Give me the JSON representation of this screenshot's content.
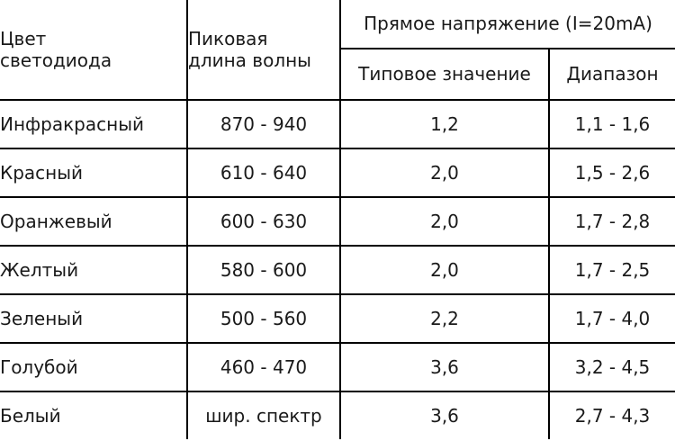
{
  "header": {
    "color_line1": "Цвет",
    "color_line2": "светодиода",
    "wave_line1": "Пиковая",
    "wave_line2": "длина волны",
    "forward_voltage": "Прямое напряжение (I=20mA)",
    "typical": "Типовое значение",
    "range": "Диапазон"
  },
  "rows": [
    {
      "color": "Инфракрасный",
      "wave": "870 - 940",
      "typical": "1,2",
      "range": "1,1 - 1,6"
    },
    {
      "color": "Красный",
      "wave": "610 - 640",
      "typical": "2,0",
      "range": "1,5 - 2,6"
    },
    {
      "color": "Оранжевый",
      "wave": "600 - 630",
      "typical": "2,0",
      "range": "1,7 - 2,8"
    },
    {
      "color": "Желтый",
      "wave": "580 - 600",
      "typical": "2,0",
      "range": "1,7 - 2,5"
    },
    {
      "color": "Зеленый",
      "wave": "500 - 560",
      "typical": "2,2",
      "range": "1,7 - 4,0"
    },
    {
      "color": "Голубой",
      "wave": "460 - 470",
      "typical": "3,6",
      "range": "3,2 - 4,5"
    },
    {
      "color": "Белый",
      "wave": "шир. спектр",
      "typical": "3,6",
      "range": "2,7 - 4,3"
    }
  ]
}
